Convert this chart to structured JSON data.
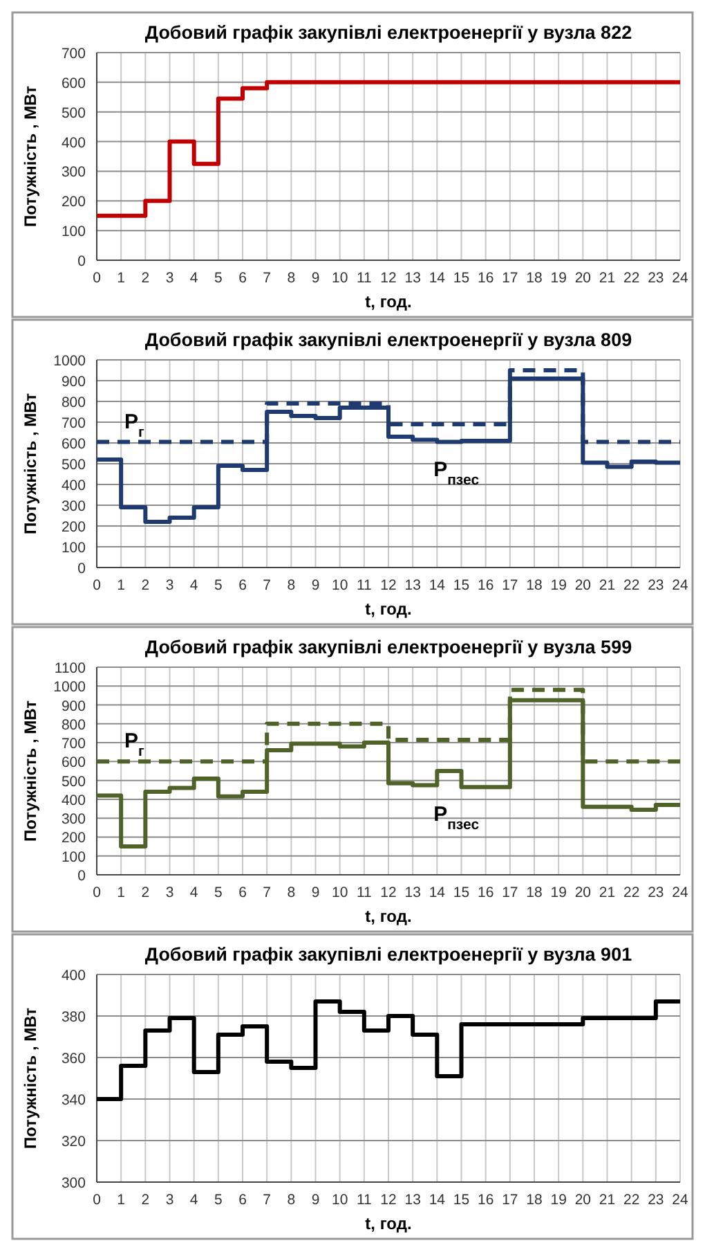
{
  "chart_data": [
    {
      "type": "step",
      "title": "Добовий графік закупівлі електроенергії у вузла 822",
      "xlabel": "t, год.",
      "ylabel": "Потужність , МВт",
      "x": [
        0,
        1,
        2,
        3,
        4,
        5,
        6,
        7,
        8,
        9,
        10,
        11,
        12,
        13,
        14,
        15,
        16,
        17,
        18,
        19,
        20,
        21,
        22,
        23,
        24
      ],
      "xlim": [
        0,
        24
      ],
      "xticks": [
        0,
        1,
        2,
        3,
        4,
        5,
        6,
        7,
        8,
        9,
        10,
        11,
        12,
        13,
        14,
        15,
        16,
        17,
        18,
        19,
        20,
        21,
        22,
        23,
        24
      ],
      "ylim": [
        0,
        700
      ],
      "yticks": [
        0,
        100,
        200,
        300,
        400,
        500,
        600,
        700
      ],
      "grid": true,
      "series": [
        {
          "color": "#c00000",
          "line_style": "solid",
          "values": [
            150,
            150,
            200,
            400,
            325,
            545,
            580,
            600,
            600,
            600,
            600,
            600,
            600,
            600,
            600,
            600,
            600,
            600,
            600,
            600,
            600,
            600,
            600,
            600,
            600
          ]
        }
      ]
    },
    {
      "type": "step",
      "title": "Добовий графік закупівлі електроенергії у вузла 809",
      "xlabel": "t, год.",
      "ylabel": "Потужність , МВт",
      "x": [
        0,
        1,
        2,
        3,
        4,
        5,
        6,
        7,
        8,
        9,
        10,
        11,
        12,
        13,
        14,
        15,
        16,
        17,
        18,
        19,
        20,
        21,
        22,
        23,
        24
      ],
      "xlim": [
        0,
        24
      ],
      "xticks": [
        0,
        1,
        2,
        3,
        4,
        5,
        6,
        7,
        8,
        9,
        10,
        11,
        12,
        13,
        14,
        15,
        16,
        17,
        18,
        19,
        20,
        21,
        22,
        23,
        24
      ],
      "ylim": [
        0,
        1000
      ],
      "yticks": [
        0,
        100,
        200,
        300,
        400,
        500,
        600,
        700,
        800,
        900,
        1000
      ],
      "grid": true,
      "series": [
        {
          "name": "P$_{пзес}$",
          "color": "#1f3a6e",
          "line_style": "solid",
          "values": [
            520,
            290,
            220,
            240,
            290,
            490,
            470,
            750,
            730,
            720,
            770,
            770,
            630,
            615,
            605,
            610,
            610,
            910,
            910,
            910,
            505,
            485,
            510,
            505,
            505
          ]
        },
        {
          "name": "P$_{г}$",
          "color": "#1f3a6e",
          "line_style": "dashed",
          "x": [
            0,
            7,
            12,
            17,
            20,
            24
          ],
          "values": [
            605,
            790,
            690,
            950,
            605,
            605
          ]
        }
      ]
    },
    {
      "type": "step",
      "title": "Добовий графік закупівлі електроенергії у вузла 599",
      "xlabel": "t, год.",
      "ylabel": "Потужність , МВт",
      "x": [
        0,
        1,
        2,
        3,
        4,
        5,
        6,
        7,
        8,
        9,
        10,
        11,
        12,
        13,
        14,
        15,
        16,
        17,
        18,
        19,
        20,
        21,
        22,
        23,
        24
      ],
      "xlim": [
        0,
        24
      ],
      "xticks": [
        0,
        1,
        2,
        3,
        4,
        5,
        6,
        7,
        8,
        9,
        10,
        11,
        12,
        13,
        14,
        15,
        16,
        17,
        18,
        19,
        20,
        21,
        22,
        23,
        24
      ],
      "ylim": [
        0,
        1100
      ],
      "yticks": [
        0,
        100,
        200,
        300,
        400,
        500,
        600,
        700,
        800,
        900,
        1000,
        1100
      ],
      "grid": true,
      "series": [
        {
          "name": "P$_{пзес}$",
          "color": "#4f6228",
          "line_style": "solid",
          "values": [
            420,
            150,
            440,
            460,
            510,
            415,
            440,
            660,
            695,
            695,
            680,
            700,
            485,
            475,
            550,
            465,
            465,
            925,
            925,
            925,
            360,
            360,
            345,
            370,
            370
          ]
        },
        {
          "name": "P$_{г}$",
          "color": "#4f6228",
          "line_style": "dashed",
          "x": [
            0,
            7,
            12,
            17,
            20,
            24
          ],
          "values": [
            600,
            800,
            715,
            980,
            600,
            600
          ]
        }
      ]
    },
    {
      "type": "step",
      "title": "Добовий графік закупівлі електроенергії у вузла 901",
      "xlabel": "t, год.",
      "ylabel": "Потужність , МВт",
      "x": [
        0,
        1,
        2,
        3,
        4,
        5,
        6,
        7,
        8,
        9,
        10,
        11,
        12,
        13,
        14,
        15,
        16,
        17,
        18,
        19,
        20,
        21,
        22,
        23,
        24
      ],
      "xlim": [
        0,
        24
      ],
      "xticks": [
        0,
        1,
        2,
        3,
        4,
        5,
        6,
        7,
        8,
        9,
        10,
        11,
        12,
        13,
        14,
        15,
        16,
        17,
        18,
        19,
        20,
        21,
        22,
        23,
        24
      ],
      "ylim": [
        300,
        400
      ],
      "yticks": [
        300,
        320,
        340,
        360,
        380,
        400
      ],
      "grid": true,
      "series": [
        {
          "color": "#000000",
          "line_style": "solid",
          "values": [
            340,
            356,
            373,
            379,
            353,
            371,
            375,
            358,
            355,
            387,
            382,
            373,
            380,
            371,
            351,
            376,
            376,
            376,
            376,
            376,
            379,
            379,
            379,
            387,
            387
          ]
        }
      ]
    }
  ]
}
